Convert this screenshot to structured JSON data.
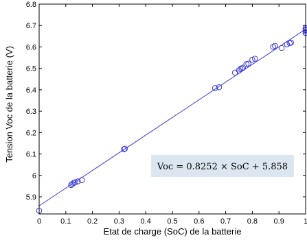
{
  "chart_data": {
    "type": "scatter",
    "title": "",
    "xlabel": "Etat de charge (SoC) de la batterie",
    "ylabel": "Tension Voc de la batterie (V)",
    "xlim": [
      0,
      1
    ],
    "ylim": [
      5.82,
      6.8
    ],
    "x_ticks": [
      "0",
      "0.1",
      "0.2",
      "0.3",
      "0.4",
      "0.5",
      "0.6",
      "0.7",
      "0.8",
      "0.9",
      "1"
    ],
    "y_ticks": [
      "5.9",
      "6",
      "6.1",
      "6.2",
      "6.3",
      "6.4",
      "6.5",
      "6.6",
      "6.7",
      "6.8"
    ],
    "grid": false,
    "series": [
      {
        "style": "circle markers",
        "color": "#3b3bdb",
        "points": [
          {
            "x": 0.0,
            "y": 5.835
          },
          {
            "x": 0.12,
            "y": 5.955
          },
          {
            "x": 0.125,
            "y": 5.96
          },
          {
            "x": 0.13,
            "y": 5.965
          },
          {
            "x": 0.135,
            "y": 5.968
          },
          {
            "x": 0.145,
            "y": 5.972
          },
          {
            "x": 0.16,
            "y": 5.978
          },
          {
            "x": 0.318,
            "y": 6.122
          },
          {
            "x": 0.322,
            "y": 6.125
          },
          {
            "x": 0.66,
            "y": 6.408
          },
          {
            "x": 0.675,
            "y": 6.412
          },
          {
            "x": 0.735,
            "y": 6.48
          },
          {
            "x": 0.75,
            "y": 6.49
          },
          {
            "x": 0.755,
            "y": 6.497
          },
          {
            "x": 0.76,
            "y": 6.5
          },
          {
            "x": 0.765,
            "y": 6.503
          },
          {
            "x": 0.778,
            "y": 6.52
          },
          {
            "x": 0.785,
            "y": 6.522
          },
          {
            "x": 0.8,
            "y": 6.54
          },
          {
            "x": 0.81,
            "y": 6.545
          },
          {
            "x": 0.878,
            "y": 6.6
          },
          {
            "x": 0.885,
            "y": 6.605
          },
          {
            "x": 0.91,
            "y": 6.595
          },
          {
            "x": 0.93,
            "y": 6.612
          },
          {
            "x": 0.94,
            "y": 6.618
          },
          {
            "x": 0.945,
            "y": 6.62
          },
          {
            "x": 1.0,
            "y": 6.665
          },
          {
            "x": 1.0,
            "y": 6.672
          },
          {
            "x": 1.0,
            "y": 6.678
          },
          {
            "x": 1.0,
            "y": 6.682
          },
          {
            "x": 1.0,
            "y": 6.688
          }
        ]
      },
      {
        "style": "line",
        "color": "#3b3bdb",
        "fit": {
          "slope": 0.8252,
          "intercept": 5.858
        }
      }
    ],
    "annotation": {
      "text": "Voc =  0.8252 × SoC + 5.858",
      "background": "#dbe6f1"
    }
  }
}
